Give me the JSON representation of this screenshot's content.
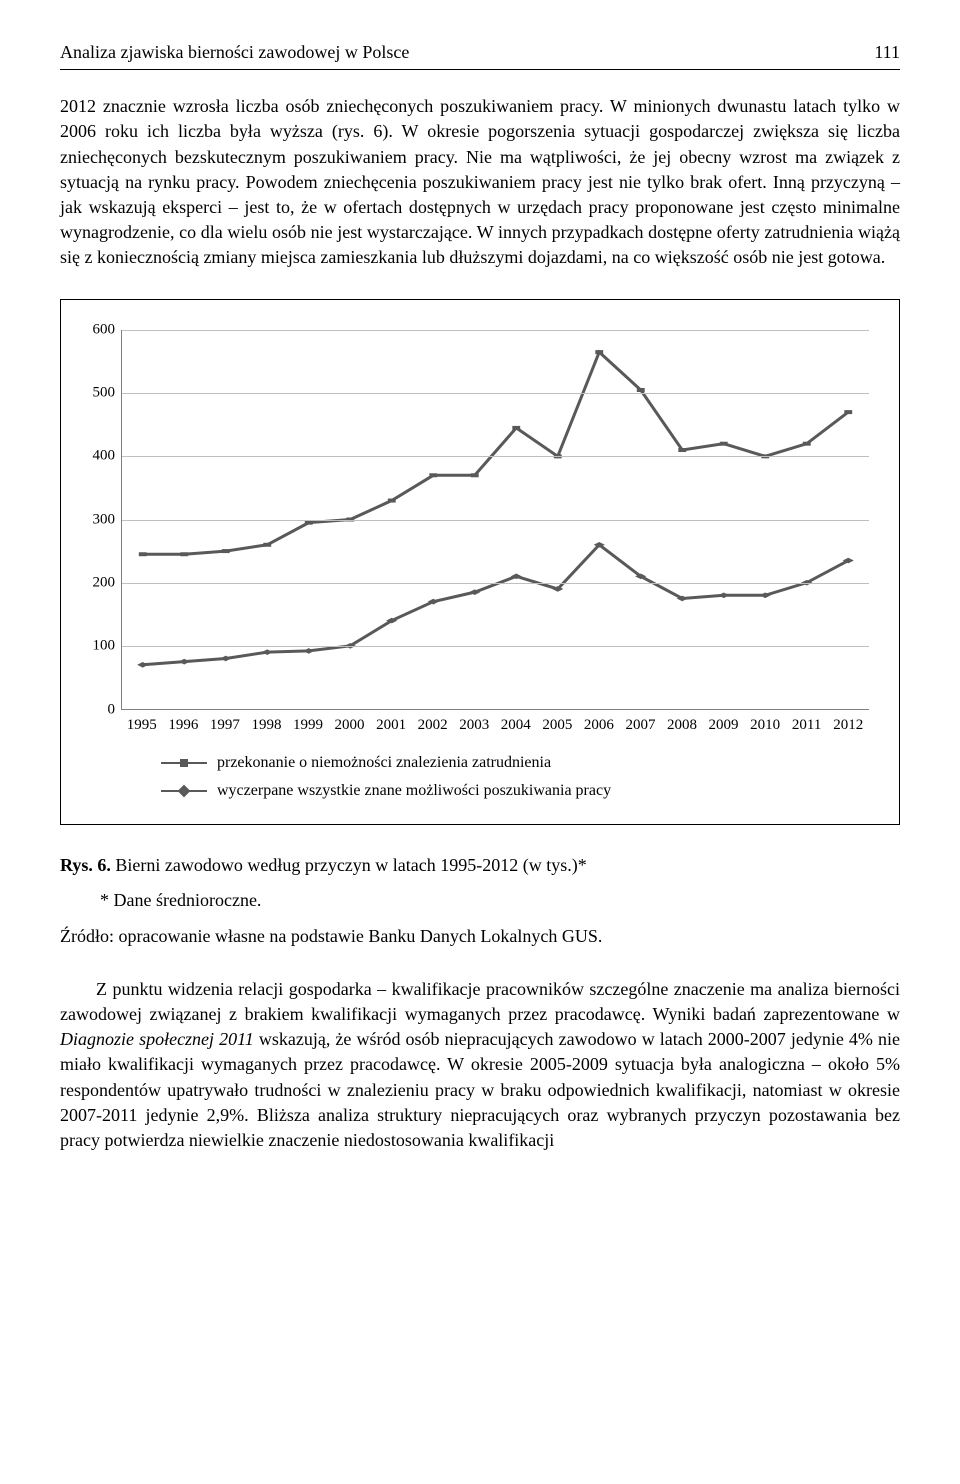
{
  "header": {
    "running_title": "Analiza zjawiska bierności zawodowej w Polsce",
    "page_number": "111"
  },
  "paragraph1": "2012 znacznie wzrosła liczba osób zniechęconych poszukiwaniem pracy. W minionych dwunastu latach tylko w 2006 roku ich liczba była wyższa (rys. 6). W okresie pogorszenia sytuacji gospodarczej zwiększa się liczba zniechęconych bezskutecznym poszukiwaniem pracy. Nie ma wątpliwości, że jej obecny wzrost ma związek z sytuacją na rynku pracy. Powodem zniechęcenia poszukiwaniem pracy jest nie tylko brak ofert. Inną przyczyną – jak wskazują eksperci – jest to, że w ofertach dostępnych w urzędach pracy proponowane jest często minimalne wynagrodzenie, co dla wielu osób nie jest wystarczające. W innych przypadkach dostępne oferty zatrudnienia wiążą się z koniecznością zmiany miejsca zamieszkania lub dłuższymi dojazdami, na co większość osób nie jest gotowa.",
  "chart": {
    "type": "line",
    "ylim": [
      0,
      600
    ],
    "ytick_step": 100,
    "yticks": [
      0,
      100,
      200,
      300,
      400,
      500,
      600
    ],
    "categories": [
      "1995",
      "1996",
      "1997",
      "1998",
      "1999",
      "2000",
      "2001",
      "2002",
      "2003",
      "2004",
      "2005",
      "2006",
      "2007",
      "2008",
      "2009",
      "2010",
      "2011",
      "2012"
    ],
    "series": [
      {
        "name": "przekonanie o niemożności znalezienia zatrudnienia",
        "marker": "square",
        "color": "#595959",
        "values": [
          245,
          245,
          250,
          260,
          295,
          300,
          330,
          370,
          370,
          445,
          400,
          565,
          505,
          410,
          420,
          400,
          420,
          470
        ]
      },
      {
        "name": "wyczerpane wszystkie znane możliwości poszukiwania pracy",
        "marker": "diamond",
        "color": "#595959",
        "values": [
          70,
          75,
          80,
          90,
          92,
          100,
          140,
          170,
          185,
          210,
          190,
          260,
          210,
          175,
          180,
          180,
          200,
          235
        ]
      }
    ],
    "line_width": 3,
    "marker_size": 8,
    "grid_color": "#bfbfbf",
    "axis_color": "#808080",
    "background_color": "#ffffff",
    "axis_fontsize": 15,
    "legend_fontsize": 16
  },
  "figure": {
    "label": "Rys. 6.",
    "caption": " Bierni zawodowo według przyczyn w latach 1995-2012 (w tys.)*",
    "footnote": "* Dane średnioroczne.",
    "source": "Źródło: opracowanie własne na podstawie Banku Danych Lokalnych GUS."
  },
  "paragraph2_pre": "Z punktu widzenia relacji gospodarka – kwalifikacje pracowników szczególne znaczenie ma analiza bierności zawodowej związanej z brakiem kwalifikacji wymaganych przez pracodawcę. Wyniki badań zaprezentowane w ",
  "paragraph2_italic": "Diagnozie społecznej 2011",
  "paragraph2_post": " wskazują, że wśród osób niepracujących zawodowo w latach 2000-2007 jedynie 4% nie miało kwalifikacji wymaganych przez pracodawcę. W okresie 2005-2009 sytuacja była analogiczna – około 5% respondentów upatrywało trudności w znalezieniu pracy w braku odpowiednich kwalifikacji, natomiast w okresie 2007-2011 jedynie 2,9%. Bliższa analiza struktury niepracujących oraz wybranych przyczyn pozostawania bez pracy potwierdza niewielkie znaczenie niedostosowania kwalifikacji"
}
